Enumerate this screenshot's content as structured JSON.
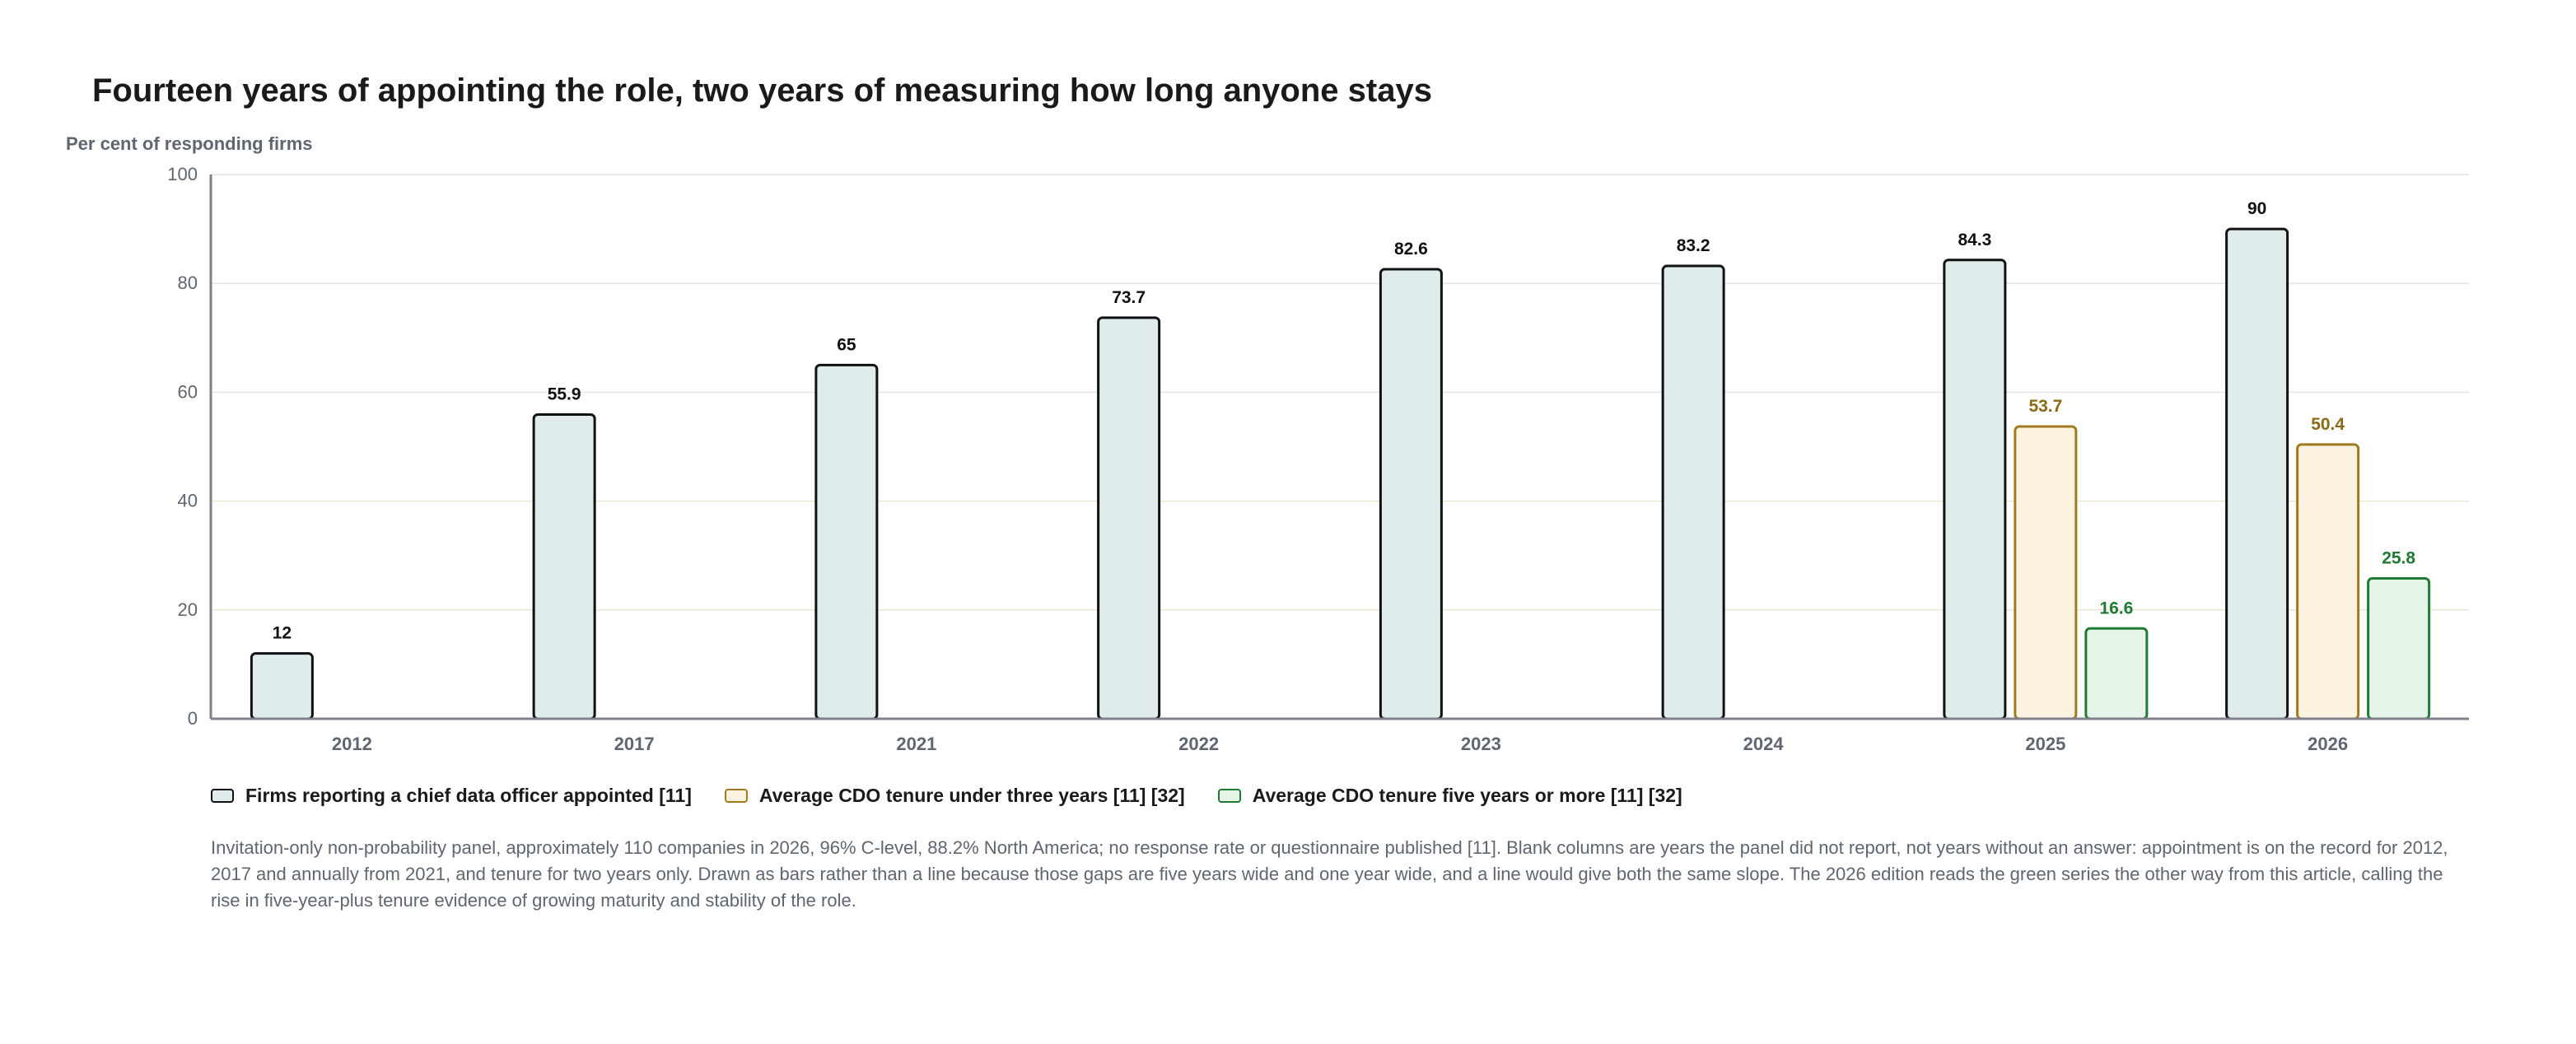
{
  "chart_data": {
    "type": "bar",
    "title": "Fourteen years of appointing the role, two years of measuring how long anyone stays",
    "ylabel": "Per cent of responding firms",
    "xlabel": "",
    "ylim": [
      0,
      100
    ],
    "yticks": [
      0,
      20,
      40,
      60,
      80,
      100
    ],
    "grid": true,
    "legend_position": "bottom",
    "categories": [
      "2012",
      "2017",
      "2021",
      "2022",
      "2023",
      "2024",
      "2025",
      "2026"
    ],
    "series": [
      {
        "name": "Firms reporting a chief data officer appointed [11]",
        "values": [
          12,
          55.9,
          65,
          73.7,
          82.6,
          83.2,
          84.3,
          90
        ],
        "color": "#111111",
        "fill": "#e0ebec",
        "label_color": "#111111"
      },
      {
        "name": "Average CDO tenure under three years [11] [32]",
        "values": [
          null,
          null,
          null,
          null,
          null,
          null,
          53.7,
          50.4
        ],
        "color": "#a07a1e",
        "fill": "#fbf3df",
        "label_color": "#8a6a17"
      },
      {
        "name": "Average CDO tenure five years or more [11] [32]",
        "values": [
          null,
          null,
          null,
          null,
          null,
          null,
          16.6,
          25.8
        ],
        "color": "#1e7a34",
        "fill": "#e6f4e8",
        "label_color": "#1e7a34"
      }
    ],
    "footnote": "Invitation-only non-probability panel, approximately 110 companies in 2026, 96% C-level, 88.2% North America; no response rate or questionnaire published [11]. Blank columns are years the panel did not report, not years without an answer: appointment is on the record for 2012, 2017 and annually from 2021, and tenure for two years only. Drawn as bars rather than a line because those gaps are five years wide and one year wide, and a line would give both the same slope. The 2026 edition reads the green series the other way from this article, calling the rise in five-year-plus tenure evidence of growing maturity and stability of the role."
  }
}
